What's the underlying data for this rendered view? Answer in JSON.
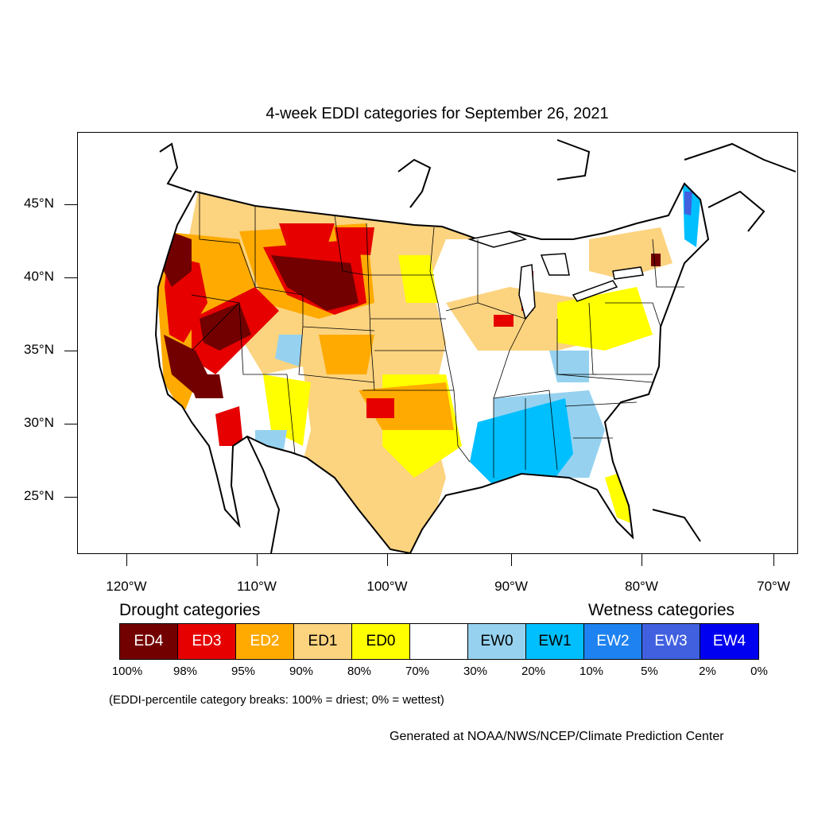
{
  "title": "4-week EDDI categories for September 26, 2021",
  "map": {
    "lat_labels": [
      "45°N",
      "40°N",
      "35°N",
      "30°N",
      "25°N"
    ],
    "lon_labels": [
      "120°W",
      "110°W",
      "100°W",
      "90°W",
      "80°W",
      "70°W"
    ]
  },
  "legend": {
    "drought_heading": "Drought categories",
    "wetness_heading": "Wetness categories",
    "categories": [
      {
        "label": "ED4",
        "color": "#730000",
        "text_color": "#ffffff"
      },
      {
        "label": "ED3",
        "color": "#e60000",
        "text_color": "#ffffff"
      },
      {
        "label": "ED2",
        "color": "#ffaa00",
        "text_color": "#ffffff"
      },
      {
        "label": "ED1",
        "color": "#fcd37f",
        "text_color": "#000000"
      },
      {
        "label": "ED0",
        "color": "#ffff00",
        "text_color": "#000000"
      },
      {
        "label": "",
        "color": "#ffffff",
        "text_color": "#000000"
      },
      {
        "label": "EW0",
        "color": "#96d2f0",
        "text_color": "#000000"
      },
      {
        "label": "EW1",
        "color": "#00bfff",
        "text_color": "#000000"
      },
      {
        "label": "EW2",
        "color": "#1e82f0",
        "text_color": "#ffffff"
      },
      {
        "label": "EW3",
        "color": "#4060e0",
        "text_color": "#ffffff"
      },
      {
        "label": "EW4",
        "color": "#0000f0",
        "text_color": "#ffffff"
      }
    ],
    "percentiles": [
      "100%",
      "98%",
      "95%",
      "90%",
      "80%",
      "70%",
      "30%",
      "20%",
      "10%",
      "5%",
      "2%",
      "0%"
    ],
    "note": "(EDDI-percentile category breaks: 100% = driest; 0% = wettest)"
  },
  "credit": "Generated at NOAA/NWS/NCEP/Climate Prediction Center"
}
